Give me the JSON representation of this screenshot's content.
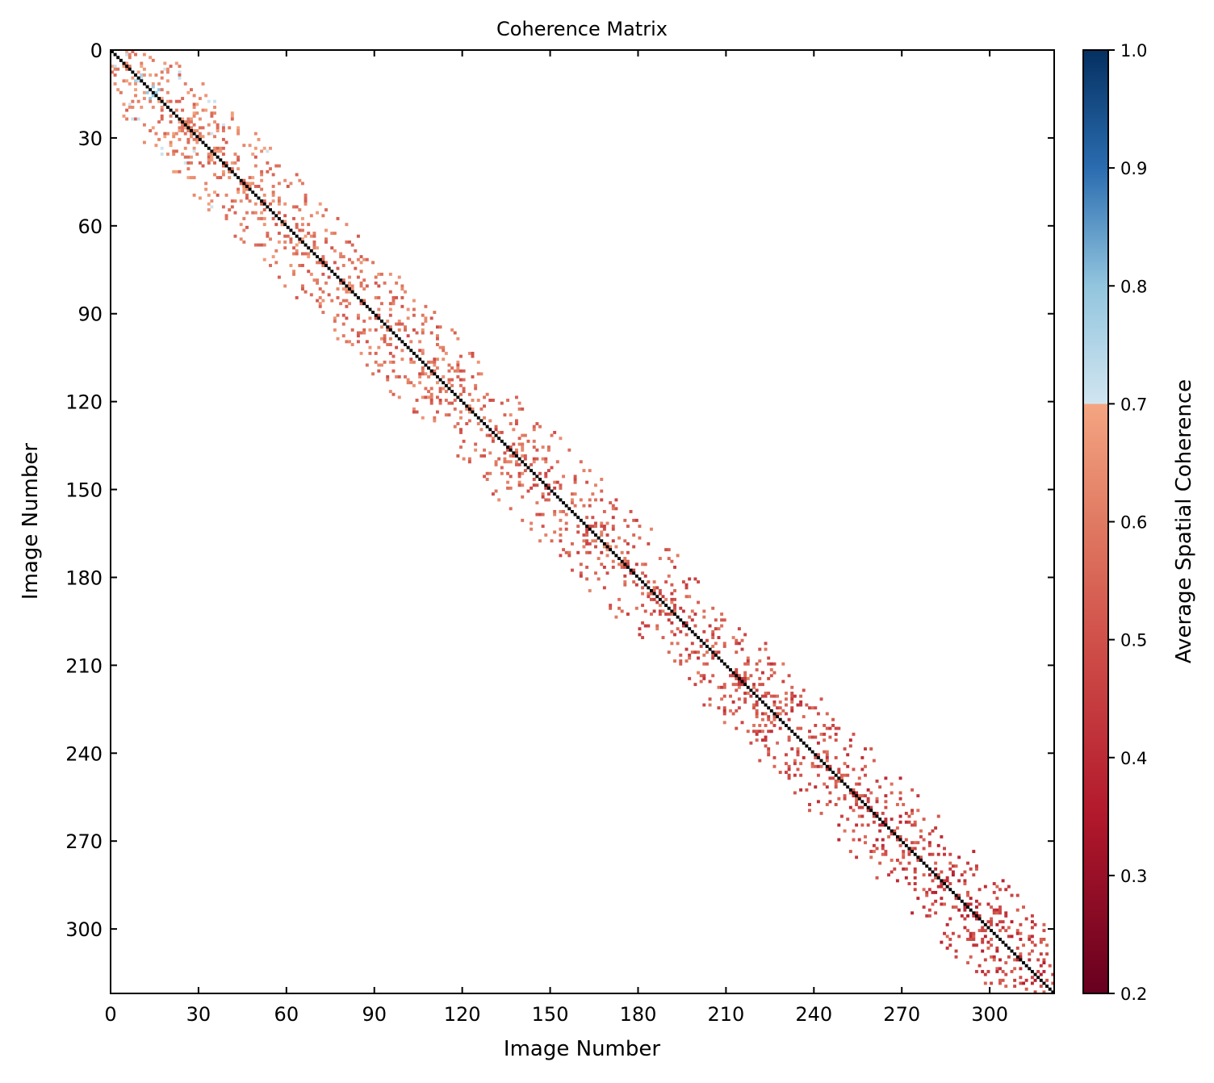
{
  "chart_data": {
    "type": "heatmap",
    "title": "Coherence Matrix",
    "xlabel": "Image Number",
    "ylabel": "Image Number",
    "colorbar_label": "Average Spatial Coherence",
    "matrix_size": 322,
    "xlim": [
      0,
      322
    ],
    "ylim": [
      322,
      0
    ],
    "xticks": [
      0,
      30,
      60,
      90,
      120,
      150,
      180,
      210,
      240,
      270,
      300
    ],
    "yticks": [
      0,
      30,
      60,
      90,
      120,
      150,
      180,
      210,
      240,
      270,
      300
    ],
    "colorbar_range": [
      0.2,
      1.0
    ],
    "colorbar_ticks": [
      "0.2",
      "0.3",
      "0.4",
      "0.5",
      "0.6",
      "0.7",
      "0.8",
      "0.9",
      "1.0"
    ],
    "colorbar_ticks_values": [
      0.2,
      0.3,
      0.4,
      0.5,
      0.6,
      0.7,
      0.8,
      0.9,
      1.0
    ],
    "colormap_break": 0.7,
    "colormap_low": [
      [
        "0.2",
        "#67001f"
      ],
      [
        "0.35",
        "#b2182b"
      ],
      [
        "0.5",
        "#d0504a"
      ],
      [
        "0.6",
        "#e07a62"
      ],
      [
        "0.7",
        "#f4a582"
      ]
    ],
    "colormap_high": [
      [
        "0.7",
        "#d1e5f0"
      ],
      [
        "0.8",
        "#92c5de"
      ],
      [
        "0.9",
        "#2a6cb0"
      ],
      [
        "1.0",
        "#053061"
      ]
    ],
    "diagonal_value": 1.0,
    "diagonal_color": "#000000",
    "offdiagonal_pattern": {
      "description_bandwidth_images": 22,
      "density": 0.22,
      "value_range_start": [
        0.55,
        0.72
      ],
      "value_range_end": [
        0.35,
        0.55
      ],
      "symmetric": true,
      "seed": 7
    },
    "grid": false
  }
}
